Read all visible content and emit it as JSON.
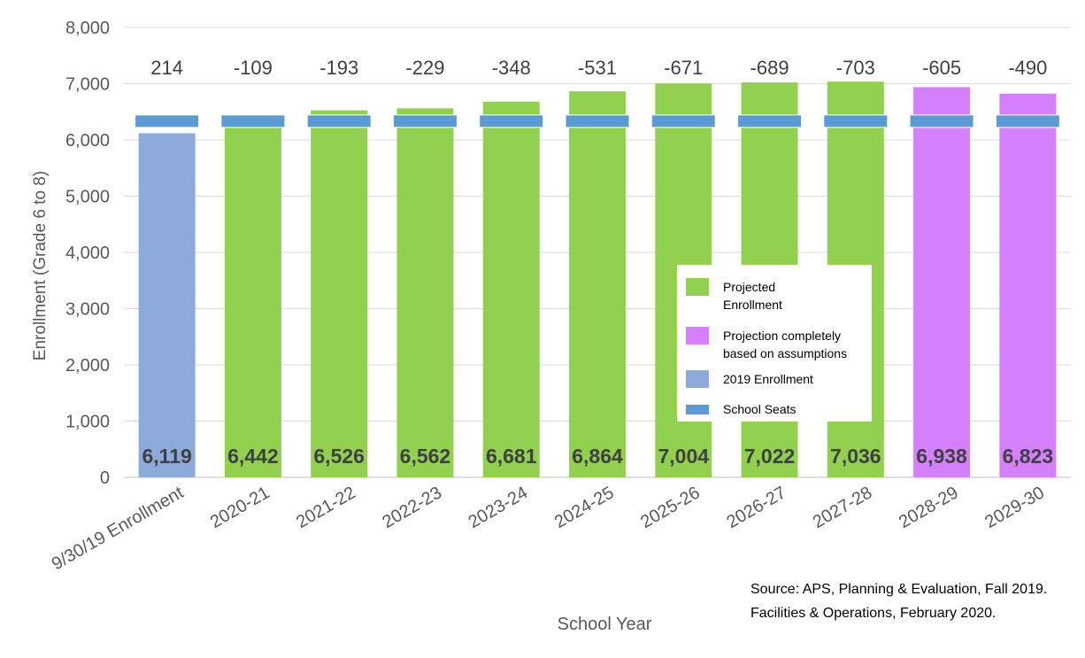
{
  "chart_data": {
    "type": "bar",
    "title": "",
    "xlabel": "School Year",
    "ylabel": "Enrollment (Grade 6 to 8)",
    "ylim": [
      0,
      8000
    ],
    "yticks": [
      0,
      1000,
      2000,
      3000,
      4000,
      5000,
      6000,
      7000,
      8000
    ],
    "ytick_labels": [
      "0",
      "1,000",
      "2,000",
      "3,000",
      "4,000",
      "5,000",
      "6,000",
      "7,000",
      "8,000"
    ],
    "grid": true,
    "categories": [
      "9/30/19 Enrollment",
      "2020-21",
      "2021-22",
      "2022-23",
      "2023-24",
      "2024-25",
      "2025-26",
      "2026-27",
      "2027-28",
      "2028-29",
      "2029-30"
    ],
    "values": [
      6119,
      6442,
      6526,
      6562,
      6681,
      6864,
      7004,
      7022,
      7036,
      6938,
      6823
    ],
    "value_labels": [
      "6,119",
      "6,442",
      "6,526",
      "6,562",
      "6,681",
      "6,864",
      "7,004",
      "7,022",
      "7,036",
      "6,938",
      "6,823"
    ],
    "bar_series": [
      "2019 Enrollment",
      "Projected Enrollment",
      "Projected Enrollment",
      "Projected Enrollment",
      "Projected Enrollment",
      "Projected Enrollment",
      "Projected Enrollment",
      "Projected Enrollment",
      "Projected Enrollment",
      "Projection completely based on assumptions",
      "Projection completely based on assumptions"
    ],
    "school_seats": 6333,
    "seat_difference_labels": [
      "214",
      "-109",
      "-193",
      "-229",
      "-348",
      "-531",
      "-671",
      "-689",
      "-703",
      "-605",
      "-490"
    ],
    "legend_position": "center-right",
    "legend": [
      {
        "label": "Projected Enrollment",
        "color": "#92d050"
      },
      {
        "label": "Projection completely based on assumptions",
        "color": "#d580ff"
      },
      {
        "label": "2019 Enrollment",
        "color": "#8eaadb"
      },
      {
        "label": "School Seats",
        "color": "#5b9bd5"
      }
    ],
    "colors": {
      "2019 Enrollment": "#8eaadb",
      "Projected Enrollment": "#92d050",
      "Projection completely based on assumptions": "#d580ff",
      "School Seats": "#5b9bd5"
    },
    "source_line_1": "Source:  APS, Planning & Evaluation, Fall 2019.",
    "source_line_2": "Facilities & Operations, February 2020."
  }
}
